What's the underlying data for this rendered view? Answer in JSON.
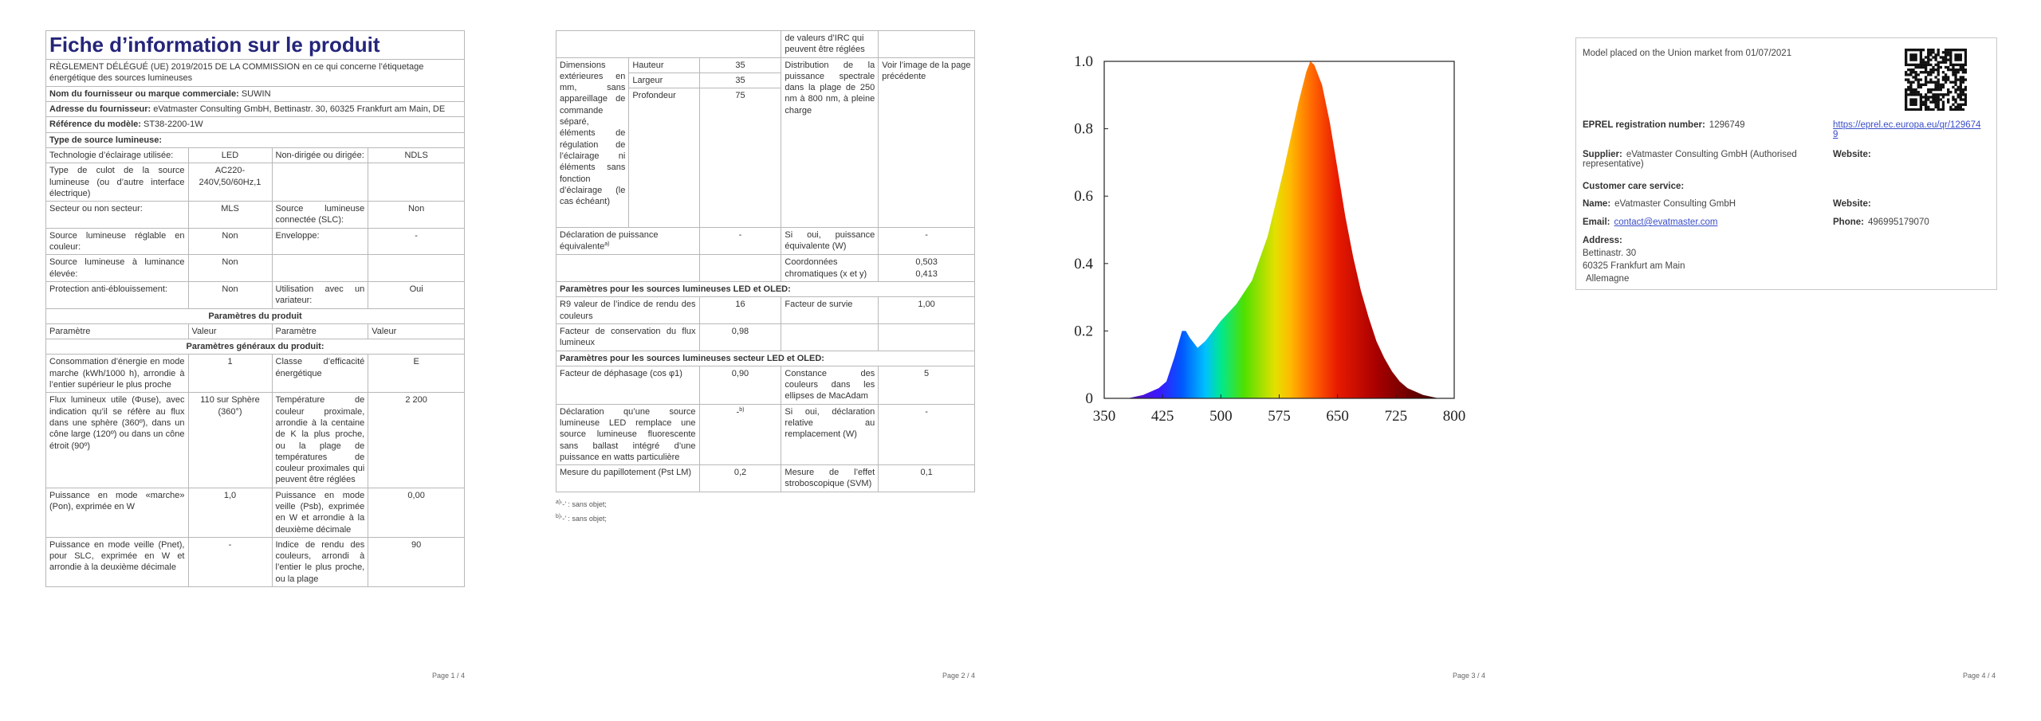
{
  "page1": {
    "title": "Fiche d’information sur le produit",
    "regulation": "RÈGLEMENT DÉLÉGUÉ (UE) 2019/2015 DE LA COMMISSION en ce qui concerne l’étiquetage énergétique des sources lumineuses",
    "supplier_label": "Nom du fournisseur ou marque commerciale:",
    "supplier": "SUWIN",
    "address_label": "Adresse du fournisseur:",
    "address": "eVatmaster Consulting GmbH, Bettinastr. 30, 60325 Frankfurt am Main, DE",
    "model_label": "Référence du modèle:",
    "model": "ST38-2200-1W",
    "source_type": "Type de source lumineuse:",
    "source_rows": [
      [
        "Technologie d’éclairage utilisée:",
        "LED",
        "Non-dirigée ou dirigée:",
        "NDLS"
      ],
      [
        "Type de culot de la source lumineuse (ou d’autre interface électrique)",
        "AC220-240V,50/60Hz,1"
      ],
      [
        "Secteur ou non secteur:",
        "MLS",
        "Source lumineuse connectée (SLC):",
        "Non"
      ],
      [
        "Source lumineuse réglable en couleur:",
        "Non",
        "Enveloppe:",
        "-"
      ],
      [
        "Source lumineuse à luminance élevée:",
        "Non"
      ],
      [
        "Protection anti-éblouissement:",
        "Non",
        "Utilisation avec un variateur:",
        "Oui"
      ]
    ],
    "params_title": "Paramètres du produit",
    "columns": [
      [
        "Paramètre",
        "Valeur",
        "Paramètre",
        "Valeur"
      ]
    ],
    "general_title": "Paramètres généraux du produit:",
    "general_rows": [
      [
        "Consommation d’énergie en mode marche (kWh/1000 h), arrondie à l’entier supérieur le plus proche",
        "1",
        "Classe d’efficacité énergétique",
        "E"
      ],
      [
        "Flux lumineux utile (Φuse), avec indication qu’il se réfère au flux dans une sphère (360º), dans un cône large (120º) ou dans un cône étroit (90º)",
        "110 sur Sphère (360°)",
        "Température de couleur proximale, arrondie à la centaine de K la plus proche, ou la plage de températures de couleur proximales qui peuvent être réglées",
        "2 200"
      ],
      [
        "Puissance en mode «marche» (Pon), exprimée en W",
        "1,0",
        "Puissance en mode veille (Psb), exprimée en W et arrondie à la deuxième décimale",
        "0,00"
      ],
      [
        "Puissance en mode veille (Pnet), pour SLC, exprimée en W et arrondie à la deuxième décimale",
        "-",
        "Indice de rendu des couleurs, arrondi à l’entier le plus proche, ou la plage",
        "90"
      ]
    ],
    "page_label": "Page 1 / 4"
  },
  "page2": {
    "continued": "de valeurs d’IRC qui peuvent être réglées",
    "dimensions_label": "Dimensions extérieures en mm, sans appareillage de commande séparé, éléments de régulation de l’éclairage ni éléments sans fonction d’éclairage (le cas échéant)",
    "dimensions": [
      [
        "Hauteur",
        "35"
      ],
      [
        "Largeur",
        "35"
      ],
      [
        "Profondeur",
        "75"
      ]
    ],
    "spectral_label": "Distribution de la puissance spectrale dans la plage de 250 nm à 800 nm, à pleine charge",
    "spectral_value": "Voir l’image de la page précédente",
    "equivalent_label": "Déclaration de puissance équivalente",
    "equivalent_note": "a)",
    "equivalent_value": "-",
    "equivalent_if": "Si oui, puissance équivalente (W)",
    "equivalent_if_value": "-",
    "chromaticity_label": "Coordonnées chromatiques (x et y)",
    "chromaticity": [
      "0,503",
      "0,413"
    ],
    "led_title": "Paramètres pour les sources lumineuses LED et OLED:",
    "led_rows": [
      [
        "R9 valeur de l’indice de rendu des couleurs",
        "16",
        "Facteur de survie",
        "1,00"
      ],
      [
        "Facteur de conservation du flux lumineux",
        "0,98"
      ]
    ],
    "mains_title": "Paramètres pour les sources lumineuses secteur LED et OLED:",
    "mains_rows": [
      [
        "Facteur de déphasage (cos φ1)",
        "0,90",
        "Constance des couleurs dans les ellipses de MacAdam",
        "5"
      ],
      [
        "Déclaration qu’une source lumineuse LED remplace une source lumineuse fluorescente sans ballast intégré d’une puissance en watts particulière",
        "-",
        "Si oui, déclaration relative au remplacement (W)",
        "-"
      ],
      [
        "Mesure du papillotement (Pst LM)",
        "0,2",
        "Mesure de l’effet stroboscopique (SVM)",
        "0,1"
      ]
    ],
    "mains_note": "b)",
    "footnotes": [
      {
        "mark": "a)",
        "text": "‘-’ : sans objet;"
      },
      {
        "mark": "b)",
        "text": "‘-’ : sans objet;"
      }
    ],
    "page_label": "Page 2 / 4"
  },
  "chart_data": {
    "type": "area",
    "x": [
      380,
      400,
      420,
      430,
      440,
      450,
      455,
      460,
      470,
      480,
      490,
      500,
      520,
      540,
      560,
      580,
      600,
      610,
      615,
      620,
      630,
      640,
      650,
      660,
      670,
      680,
      690,
      700,
      710,
      720,
      730,
      740,
      760,
      780
    ],
    "values": [
      0,
      0.01,
      0.03,
      0.05,
      0.12,
      0.2,
      0.2,
      0.18,
      0.15,
      0.17,
      0.2,
      0.23,
      0.28,
      0.35,
      0.48,
      0.67,
      0.88,
      0.97,
      1.0,
      0.99,
      0.93,
      0.82,
      0.68,
      0.54,
      0.42,
      0.32,
      0.24,
      0.17,
      0.12,
      0.08,
      0.05,
      0.03,
      0.01,
      0
    ],
    "xlim": [
      350,
      800
    ],
    "ylim": [
      0,
      1
    ],
    "xticks": [
      350,
      425,
      500,
      575,
      650,
      725,
      800
    ],
    "yticks": [
      0,
      0.2,
      0.4,
      0.6,
      0.8,
      {
        "value": 1,
        "label": "1.0"
      }
    ],
    "page_label": "Page 3 / 4"
  },
  "page4": {
    "market": "Model placed on the Union market from 01/07/2021",
    "eprel_label": "EPREL registration number:",
    "eprel": "1296749",
    "eprel_url": "https://eprel.ec.europa.eu/qr/1296749",
    "supplier_label": "Supplier:",
    "supplier": "eVatmaster Consulting GmbH (Authorised representative)",
    "website_label": "Website:",
    "care_title": "Customer care service:",
    "name_label": "Name:",
    "name": "eVatmaster Consulting GmbH",
    "care_website_label": "Website:",
    "email_label": "Email:",
    "email": "contact@evatmaster.com",
    "phone_label": "Phone:",
    "phone": "496995179070",
    "address_label": "Address:",
    "address": [
      "Bettinastr. 30",
      "60325 Frankfurt am Main",
      "Allemagne"
    ],
    "page_label": "Page 4 / 4"
  }
}
